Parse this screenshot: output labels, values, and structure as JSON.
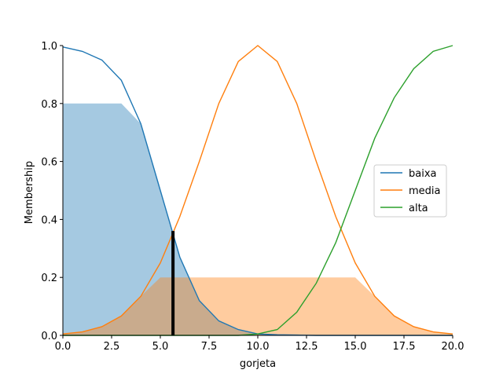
{
  "chart_data": {
    "type": "line",
    "title": "",
    "xlabel": "gorjeta",
    "ylabel": "Membership",
    "xlim": [
      0,
      20
    ],
    "ylim": [
      0,
      1
    ],
    "x_ticks": [
      "0.0",
      "2.5",
      "5.0",
      "7.5",
      "10.0",
      "12.5",
      "15.0",
      "17.5",
      "20.0"
    ],
    "y_ticks": [
      "0.0",
      "0.2",
      "0.4",
      "0.6",
      "0.8",
      "1.0"
    ],
    "grid": false,
    "legend_position": "center-right",
    "x": [
      0,
      1,
      2,
      3,
      4,
      5,
      6,
      7,
      8,
      9,
      10,
      11,
      12,
      13,
      14,
      15,
      16,
      17,
      18,
      19,
      20
    ],
    "series": [
      {
        "name": "baixa",
        "color": "#1f77b4",
        "values": [
          0.995,
          0.98,
          0.95,
          0.88,
          0.73,
          0.5,
          0.27,
          0.12,
          0.05,
          0.02,
          0.005,
          0.002,
          0.001,
          0,
          0,
          0,
          0,
          0,
          0,
          0,
          0
        ]
      },
      {
        "name": "media",
        "color": "#ff7f0e",
        "values": [
          0.005,
          0.012,
          0.03,
          0.067,
          0.135,
          0.25,
          0.41,
          0.6,
          0.8,
          0.945,
          1.0,
          0.945,
          0.8,
          0.6,
          0.41,
          0.25,
          0.135,
          0.067,
          0.03,
          0.012,
          0.005
        ]
      },
      {
        "name": "alta",
        "color": "#2ca02c",
        "values": [
          0,
          0,
          0,
          0,
          0,
          0,
          0,
          0,
          0,
          0,
          0.005,
          0.02,
          0.08,
          0.18,
          0.32,
          0.5,
          0.68,
          0.82,
          0.92,
          0.98,
          1.0
        ]
      }
    ],
    "activation_fills": [
      {
        "series": "baixa",
        "level": 0.8,
        "color": "#1f77b4"
      },
      {
        "series": "media",
        "level": 0.2,
        "color": "#ff7f0e"
      }
    ],
    "result_marker": {
      "x": 5.65,
      "y": 0.36,
      "color": "#000000"
    }
  }
}
